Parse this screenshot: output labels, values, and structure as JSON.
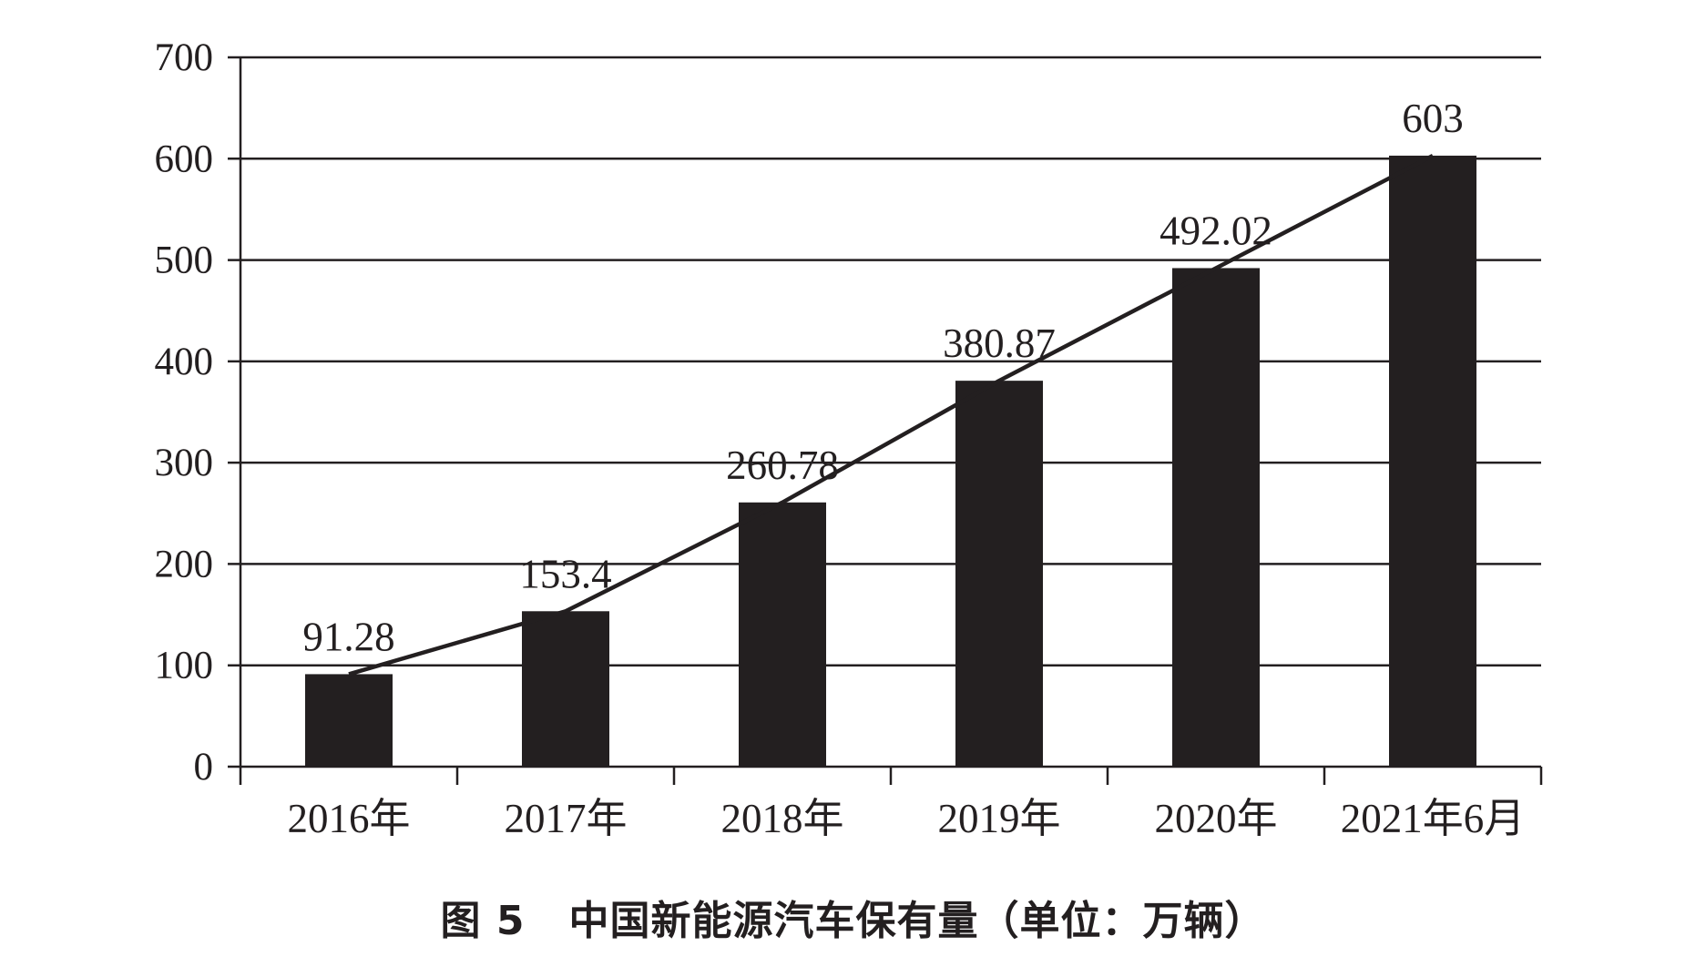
{
  "caption": {
    "figure_label": "图 5",
    "title": "中国新能源汽车保有量（单位：万辆）"
  },
  "chart_data": {
    "type": "bar",
    "categories": [
      "2016年",
      "2017年",
      "2018年",
      "2019年",
      "2020年",
      "2021年6月"
    ],
    "series": [
      {
        "values": [
          91.28,
          153.4,
          260.78,
          380.87,
          492.02,
          603
        ]
      }
    ],
    "data_labels": [
      "91.28",
      "153.4",
      "260.78",
      "380.87",
      "492.02",
      "603"
    ],
    "trend_line": true,
    "title": "",
    "xlabel": "",
    "ylabel": "",
    "ylim": [
      0,
      700
    ],
    "yticks": [
      0,
      100,
      200,
      300,
      400,
      500,
      600,
      700
    ],
    "grid": true,
    "legend": "none",
    "colors": {
      "bar": "#231f20",
      "line": "#231f20",
      "grid": "#231f20",
      "text": "#231f20"
    }
  }
}
